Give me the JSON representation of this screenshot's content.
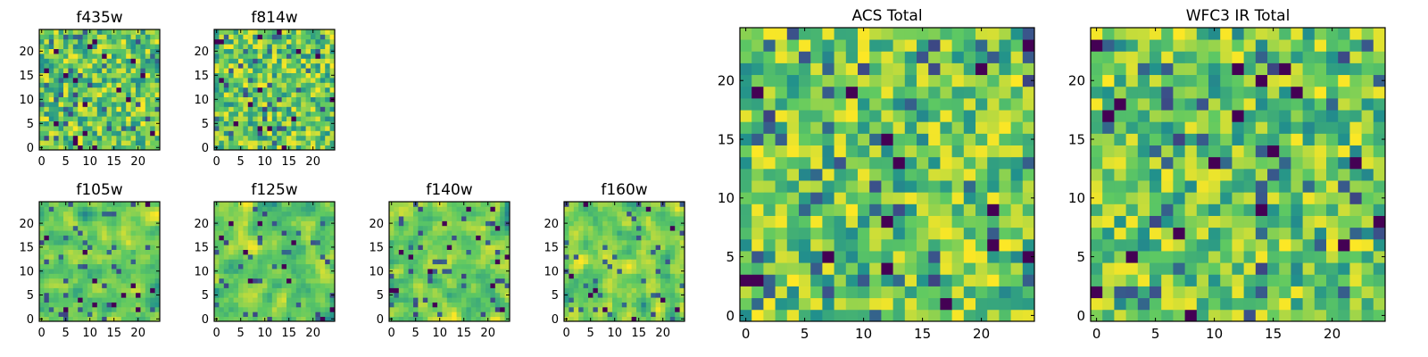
{
  "colormap": [
    "#440154",
    "#3b528b",
    "#21918c",
    "#5ec962",
    "#fde725"
  ],
  "chart_data": [
    {
      "type": "heatmap",
      "title": "f435w",
      "size": 25,
      "xticks": [
        0,
        5,
        10,
        15,
        20
      ],
      "yticks": [
        0,
        5,
        10,
        15,
        20
      ],
      "xlim": [
        -0.5,
        24.5
      ],
      "ylim": [
        -0.5,
        24.5
      ],
      "seed": 11,
      "smooth": 0,
      "note_values": "random per-pixel noise, estimated"
    },
    {
      "type": "heatmap",
      "title": "f814w",
      "size": 25,
      "xticks": [
        0,
        5,
        10,
        15,
        20
      ],
      "yticks": [
        0,
        5,
        10,
        15,
        20
      ],
      "xlim": [
        -0.5,
        24.5
      ],
      "ylim": [
        -0.5,
        24.5
      ],
      "seed": 23,
      "smooth": 0
    },
    {
      "type": "heatmap",
      "title": "f105w",
      "size": 25,
      "xticks": [
        0,
        5,
        10,
        15,
        20
      ],
      "yticks": [
        0,
        5,
        10,
        15,
        20
      ],
      "xlim": [
        -0.5,
        24.5
      ],
      "ylim": [
        -0.5,
        24.5
      ],
      "seed": 37,
      "smooth": 1
    },
    {
      "type": "heatmap",
      "title": "f125w",
      "size": 25,
      "xticks": [
        0,
        5,
        10,
        15,
        20
      ],
      "yticks": [
        0,
        5,
        10,
        15,
        20
      ],
      "xlim": [
        -0.5,
        24.5
      ],
      "ylim": [
        -0.5,
        24.5
      ],
      "seed": 41,
      "smooth": 1
    },
    {
      "type": "heatmap",
      "title": "f140w",
      "size": 25,
      "xticks": [
        0,
        5,
        10,
        15,
        20
      ],
      "yticks": [
        0,
        5,
        10,
        15,
        20
      ],
      "xlim": [
        -0.5,
        24.5
      ],
      "ylim": [
        -0.5,
        24.5
      ],
      "seed": 53,
      "smooth": 1
    },
    {
      "type": "heatmap",
      "title": "f160w",
      "size": 25,
      "xticks": [
        0,
        5,
        10,
        15,
        20
      ],
      "yticks": [
        0,
        5,
        10,
        15,
        20
      ],
      "xlim": [
        -0.5,
        24.5
      ],
      "ylim": [
        -0.5,
        24.5
      ],
      "seed": 67,
      "smooth": 1
    },
    {
      "type": "heatmap",
      "title": "ACS Total",
      "size": 25,
      "xticks": [
        0,
        5,
        10,
        15,
        20
      ],
      "yticks": [
        0,
        5,
        10,
        15,
        20
      ],
      "xlim": [
        -0.5,
        24.5
      ],
      "ylim": [
        -0.5,
        24.5
      ],
      "seed": 79,
      "smooth": 0
    },
    {
      "type": "heatmap",
      "title": "WFC3 IR Total",
      "size": 25,
      "xticks": [
        0,
        5,
        10,
        15,
        20
      ],
      "yticks": [
        0,
        5,
        10,
        15,
        20
      ],
      "xlim": [
        -0.5,
        24.5
      ],
      "ylim": [
        -0.5,
        24.5
      ],
      "seed": 97,
      "smooth": 0
    }
  ]
}
